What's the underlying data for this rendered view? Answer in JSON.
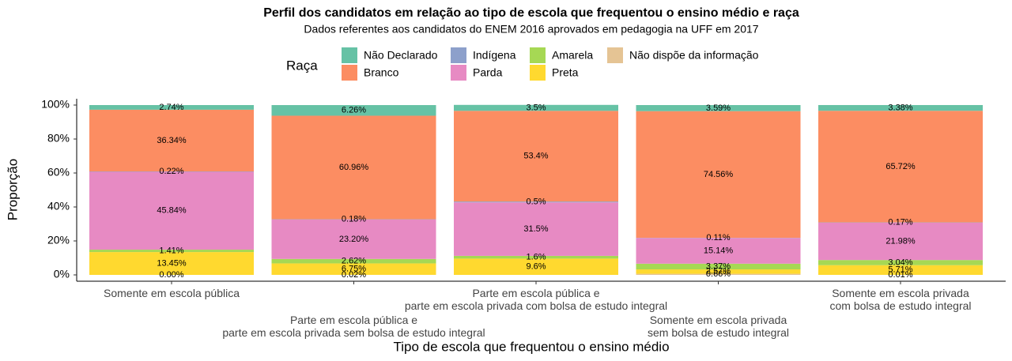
{
  "chart_data": {
    "type": "stacked-bar",
    "title": "Perfil dos candidatos em relação ao tipo de escola que frequentou o ensino médio e raça",
    "subtitle": "Dados referentes aos candidatos do ENEM 2016 aprovados em pedagogia na UFF em 2017",
    "x_label": "Tipo de escola que frequentou o ensino médio",
    "y_label": "Proporção",
    "legend_title": "Raça",
    "categories": [
      "Somente em escola pública",
      "Parte em escola pública e\nparte em escola privada sem bolsa de estudo integral",
      "Parte em escola pública e\nparte em escola privada com bolsa de estudo integral",
      "Somente em escola privada\nsem bolsa de estudo integral",
      "Somente em escola privada\ncom bolsa de estudo integral"
    ],
    "series": [
      {
        "name": "Não Declarado",
        "color": "#66c2a5",
        "values": [
          2.74,
          6.26,
          3.5,
          3.59,
          3.38
        ],
        "value_labels": [
          "2.74%",
          "6.26%",
          "3.5%",
          "3.59%",
          "3.38%"
        ]
      },
      {
        "name": "Branco",
        "color": "#fc8d62",
        "values": [
          36.34,
          60.96,
          53.4,
          74.56,
          65.72
        ],
        "value_labels": [
          "36.34%",
          "60.96%",
          "53.4%",
          "74.56%",
          "65.72%"
        ]
      },
      {
        "name": "Indígena",
        "color": "#8da0cb",
        "values": [
          0.22,
          0.18,
          0.5,
          0.11,
          0.17
        ],
        "value_labels": [
          "0.22%",
          "0.18%",
          "0.5%",
          "0.11%",
          "0.17%"
        ]
      },
      {
        "name": "Parda",
        "color": "#e78ac3",
        "values": [
          45.84,
          23.2,
          31.5,
          15.14,
          21.98
        ],
        "value_labels": [
          "45.84%",
          "23.20%",
          "31.5%",
          "15.14%",
          "21.98%"
        ]
      },
      {
        "name": "Amarela",
        "color": "#a6d854",
        "values": [
          1.41,
          2.62,
          1.6,
          3.37,
          3.04
        ],
        "value_labels": [
          "1.41%",
          "2.62%",
          "1.6%",
          "3.37%",
          "3.04%"
        ]
      },
      {
        "name": "Preta",
        "color": "#ffd92f",
        "values": [
          13.45,
          6.75,
          9.6,
          2.57,
          5.71
        ],
        "value_labels": [
          "13.45%",
          "6.75%",
          "9.6%",
          "2.57%",
          "5.71%"
        ]
      },
      {
        "name": "Não dispõe da informação",
        "color": "#e5c494",
        "values": [
          0.0,
          0.02,
          null,
          0.66,
          0.01
        ],
        "value_labels": [
          "0.00%",
          "0.02%",
          null,
          "0.66%",
          "0.01%"
        ]
      }
    ],
    "ylim": [
      0,
      100
    ],
    "yticks": [
      {
        "value": 0,
        "label": "0%"
      },
      {
        "value": 20,
        "label": "20%"
      },
      {
        "value": 40,
        "label": "40%"
      },
      {
        "value": 60,
        "label": "60%"
      },
      {
        "value": 80,
        "label": "80%"
      },
      {
        "value": 100,
        "label": "100%"
      }
    ]
  }
}
